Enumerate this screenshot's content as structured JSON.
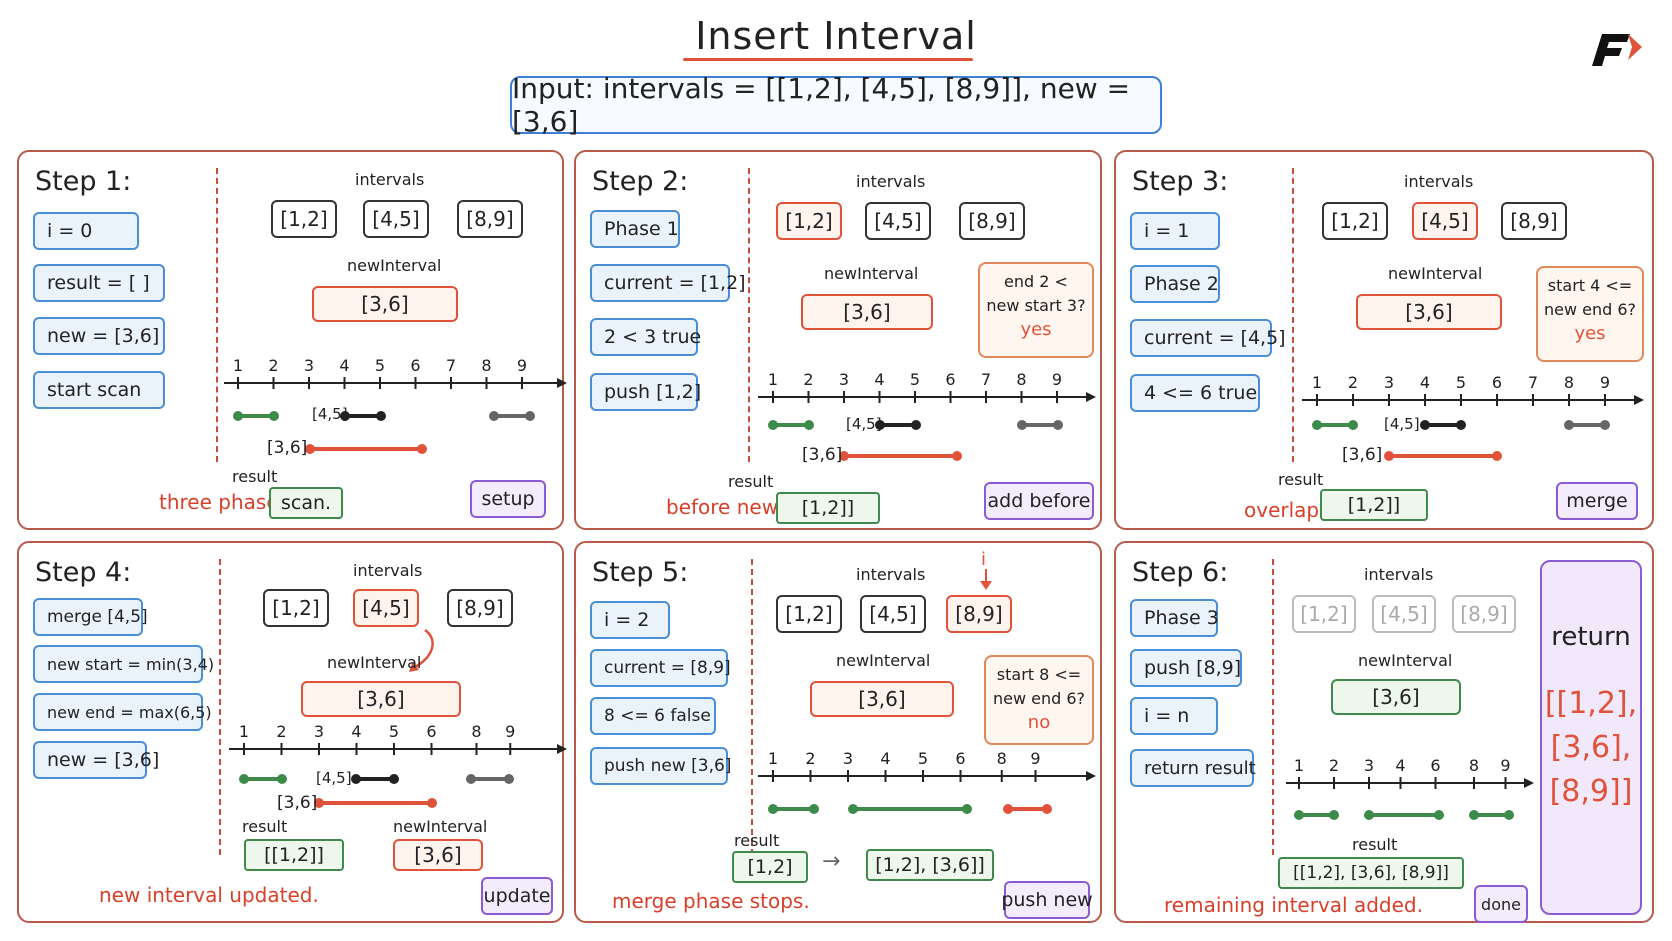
{
  "title": "Insert Interval",
  "input": "Input: intervals = [[1,2], [4,5], [8,9]], new = [3,6]",
  "colors": {
    "accent_red": "#e0533a",
    "green": "#3d8a4a",
    "blue": "#4a8ed6",
    "purple": "#8b5bd6"
  },
  "steps": [
    {
      "title": "Step 1:",
      "left": [
        "i = 0",
        "result = [ ]",
        "new = [3,6]",
        "start scan"
      ],
      "intervals_label": "intervals",
      "intervals": [
        "[1,2]",
        "[4,5]",
        "[8,9]"
      ],
      "new_label": "newInterval",
      "new_value": "[3,6]",
      "axis_ticks": [
        "1",
        "2",
        "3",
        "4",
        "5",
        "6",
        "7",
        "8",
        "9"
      ],
      "seg_labels": [
        "[4,5]",
        "[3,6]"
      ],
      "result_label": "result",
      "footer": "three phase",
      "result_value": "scan.",
      "tag": "setup"
    },
    {
      "title": "Step 2:",
      "left": [
        "Phase 1",
        "current = [1,2]",
        "2 < 3 true",
        "push [1,2]"
      ],
      "intervals_label": "intervals",
      "intervals": [
        "[1,2]",
        "[4,5]",
        "[8,9]"
      ],
      "new_label": "newInterval",
      "new_value": "[3,6]",
      "compare": [
        "end 2 <",
        "new start 3?"
      ],
      "verdict": "yes",
      "axis_ticks": [
        "1",
        "2",
        "3",
        "4",
        "5",
        "6",
        "7",
        "8",
        "9"
      ],
      "seg_labels": [
        "[4,5]",
        "[3,6]"
      ],
      "result_label": "result",
      "footer": "before new",
      "result_value": "[1,2]]",
      "tag": "add before"
    },
    {
      "title": "Step 3:",
      "left": [
        "i = 1",
        "Phase 2",
        "current = [4,5]",
        "4 <= 6 true"
      ],
      "intervals_label": "intervals",
      "intervals": [
        "[1,2]",
        "[4,5]",
        "[8,9]"
      ],
      "new_label": "newInterval",
      "new_value": "[3,6]",
      "compare": [
        "start 4 <=",
        "new end 6?"
      ],
      "verdict": "yes",
      "axis_ticks": [
        "1",
        "2",
        "3",
        "4",
        "5",
        "6",
        "7",
        "8",
        "9"
      ],
      "seg_labels": [
        "[4,5]",
        "[3,6]"
      ],
      "result_label": "result",
      "footer": "overlap",
      "result_value": "[1,2]]",
      "tag": "merge"
    },
    {
      "title": "Step 4:",
      "left": [
        "merge [4,5]",
        "new start = min(3,4)",
        "new end = max(6,5)",
        "new = [3,6]"
      ],
      "intervals_label": "intervals",
      "intervals": [
        "[1,2]",
        "[4,5]",
        "[8,9]"
      ],
      "new_label": "newInterval",
      "new_value": "[3,6]",
      "axis_ticks": [
        "1",
        "2",
        "3",
        "4",
        "5",
        "6",
        "8",
        "9"
      ],
      "seg_labels": [
        "[4,5]",
        "[3,6]"
      ],
      "result_label": "result",
      "result_value": "[[1,2]]",
      "new_result_label": "newInterval",
      "new_result_value": "[3,6]",
      "footer": "new interval updated.",
      "tag": "update"
    },
    {
      "title": "Step 5:",
      "left": [
        "i = 2",
        "current = [8,9]",
        "8 <= 6 false",
        "push new [3,6]"
      ],
      "pointer": "i",
      "intervals_label": "intervals",
      "intervals": [
        "[1,2]",
        "[4,5]",
        "[8,9]"
      ],
      "new_label": "newInterval",
      "new_value": "[3,6]",
      "compare": [
        "start 8 <=",
        "new end 6?"
      ],
      "verdict": "no",
      "axis_ticks": [
        "1",
        "2",
        "3",
        "4",
        "5",
        "6",
        "8",
        "9"
      ],
      "result_label": "result",
      "result_value": "[1,2]",
      "arrow": "→",
      "result_after": "[1,2], [3,6]]",
      "footer": "merge phase stops.",
      "tag": "push new"
    },
    {
      "title": "Step 6:",
      "left": [
        "Phase 3",
        "push [8,9]",
        "i = n",
        "return result"
      ],
      "intervals_label": "intervals",
      "intervals": [
        "[1,2]",
        "[4,5]",
        "[8,9]"
      ],
      "new_label": "newInterval",
      "new_value": "[3,6]",
      "axis_ticks": [
        "1",
        "2",
        "3",
        "4",
        "6",
        "8",
        "9"
      ],
      "result_label": "result",
      "result_value": "[[1,2], [3,6], [8,9]]",
      "footer": "remaining interval added.",
      "tag": "done",
      "return_title": "return",
      "return_lines": [
        "[[1,2],",
        "[3,6],",
        "[8,9]]"
      ]
    }
  ]
}
